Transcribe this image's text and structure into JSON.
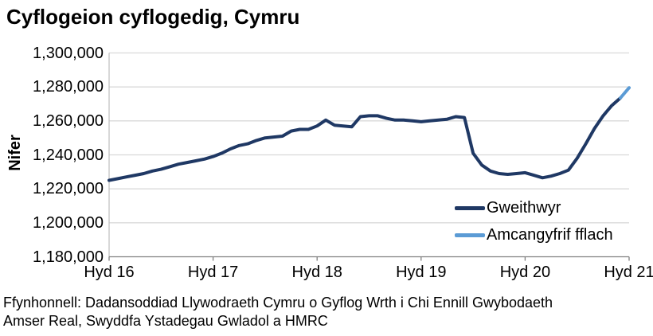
{
  "title": "Cyflogeion cyflogedig, Cymru",
  "y_axis_title": "Nifer",
  "source_lines": [
    "Ffynhonnell: Dadansoddiad Llywodraeth Cymru o Gyflog Wrth i Chi Ennill Gwybodaeth",
    "Amser Real, Swyddfa Ystadegau Gwladol a HMRC"
  ],
  "legend": {
    "items": [
      {
        "label": "Gweithwyr",
        "color": "#1F3864"
      },
      {
        "label": "Amcangyfrif fflach",
        "color": "#5B9BD5"
      }
    ]
  },
  "colors": {
    "workers_line": "#1F3864",
    "flash_line": "#5B9BD5",
    "gridline": "#D9D9D9",
    "y_axis_line": "#BFBFBF",
    "x_axis_line": "#808080",
    "text": "#000000"
  },
  "chart_data": {
    "type": "line",
    "title": "Cyflogeion cyflogedig, Cymru",
    "ylabel": "Nifer",
    "xlabel": "",
    "x_frequency": "monthly",
    "x_range": "Hydref 2016 - Hydref 2021",
    "x_tick_labels": [
      "Hyd 16",
      "Hyd 17",
      "Hyd 18",
      "Hyd 19",
      "Hyd 20",
      "Hyd 21"
    ],
    "x_tick_indices": [
      0,
      12,
      24,
      36,
      48,
      60
    ],
    "total_points": 61,
    "ylim": [
      1180000,
      1300000
    ],
    "y_ticks": [
      1180000,
      1200000,
      1220000,
      1240000,
      1260000,
      1280000,
      1300000
    ],
    "grid": "horizontal",
    "legend_position": "inside-bottom-right",
    "series": [
      {
        "name": "Gweithwyr",
        "color": "#1F3864",
        "start_index": 0,
        "months": "2016-10 to 2021-09",
        "values": [
          1225000,
          1226000,
          1227000,
          1228000,
          1229000,
          1230500,
          1231500,
          1233000,
          1234500,
          1235500,
          1236500,
          1237500,
          1239000,
          1241000,
          1243500,
          1245500,
          1246500,
          1248500,
          1250000,
          1250500,
          1251000,
          1254000,
          1255000,
          1255000,
          1257000,
          1260500,
          1257500,
          1257000,
          1256500,
          1262500,
          1263000,
          1263000,
          1261500,
          1260500,
          1260500,
          1260000,
          1259500,
          1260000,
          1260500,
          1261000,
          1262500,
          1262000,
          1241000,
          1234000,
          1230500,
          1229000,
          1228500,
          1229000,
          1229500,
          1228000,
          1226500,
          1227500,
          1229000,
          1231000,
          1238000,
          1246500,
          1255500,
          1263000,
          1269000,
          1273500
        ]
      },
      {
        "name": "Amcangyfrif fflach",
        "color": "#5B9BD5",
        "start_index": 59,
        "months": "2021-09 to 2021-10",
        "values": [
          1273500,
          1279500
        ]
      }
    ]
  }
}
